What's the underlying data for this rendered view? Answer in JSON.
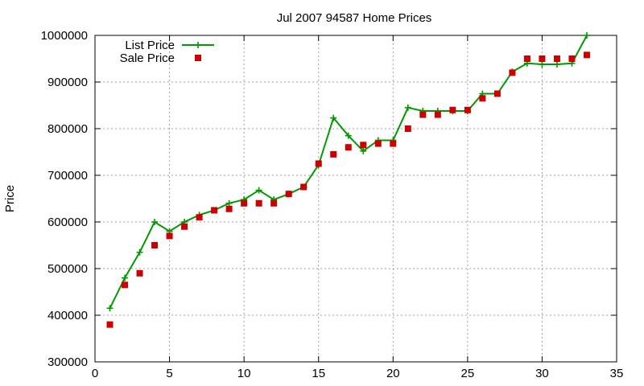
{
  "chart_data": {
    "type": "line",
    "title": "Jul 2007 94587 Home Prices",
    "xlabel": "",
    "ylabel": "Price",
    "xlim": [
      0,
      35
    ],
    "ylim": [
      300000,
      1000000
    ],
    "x_ticks": [
      0,
      5,
      10,
      15,
      20,
      25,
      30,
      35
    ],
    "y_ticks": [
      300000,
      400000,
      500000,
      600000,
      700000,
      800000,
      900000,
      1000000
    ],
    "x_tick_labels": [
      "0",
      "5",
      "10",
      "15",
      "20",
      "25",
      "30",
      "35"
    ],
    "y_tick_labels": [
      "300000",
      "400000",
      "500000",
      "600000",
      "700000",
      "800000",
      "900000",
      "1000000"
    ],
    "grid": true,
    "legend_position": "top-left",
    "series": [
      {
        "name": "List Price",
        "style": "linespoints",
        "marker": "plus",
        "color": "#009900",
        "x": [
          1,
          2,
          3,
          4,
          5,
          6,
          7,
          8,
          9,
          10,
          11,
          12,
          13,
          14,
          15,
          16,
          17,
          18,
          19,
          20,
          21,
          22,
          23,
          24,
          25,
          26,
          27,
          28,
          29,
          30,
          31,
          32,
          33
        ],
        "values": [
          415000,
          480000,
          535000,
          600000,
          580000,
          600000,
          615000,
          625000,
          640000,
          648000,
          668000,
          648000,
          660000,
          675000,
          722000,
          823000,
          785000,
          752000,
          775000,
          775000,
          845000,
          838000,
          838000,
          838000,
          838000,
          875000,
          875000,
          922000,
          940000,
          938000,
          938000,
          940000,
          1000000
        ]
      },
      {
        "name": "Sale Price",
        "style": "points",
        "marker": "square",
        "color": "#cc0000",
        "x": [
          1,
          2,
          3,
          4,
          5,
          6,
          7,
          8,
          9,
          10,
          11,
          12,
          13,
          14,
          15,
          16,
          17,
          18,
          19,
          20,
          21,
          22,
          23,
          24,
          25,
          26,
          27,
          28,
          29,
          30,
          31,
          32,
          33
        ],
        "values": [
          380000,
          465000,
          490000,
          550000,
          570000,
          590000,
          610000,
          625000,
          628000,
          640000,
          640000,
          640000,
          660000,
          675000,
          725000,
          745000,
          760000,
          765000,
          768000,
          768000,
          800000,
          830000,
          830000,
          840000,
          840000,
          865000,
          875000,
          920000,
          950000,
          950000,
          950000,
          950000,
          958000
        ]
      }
    ]
  }
}
